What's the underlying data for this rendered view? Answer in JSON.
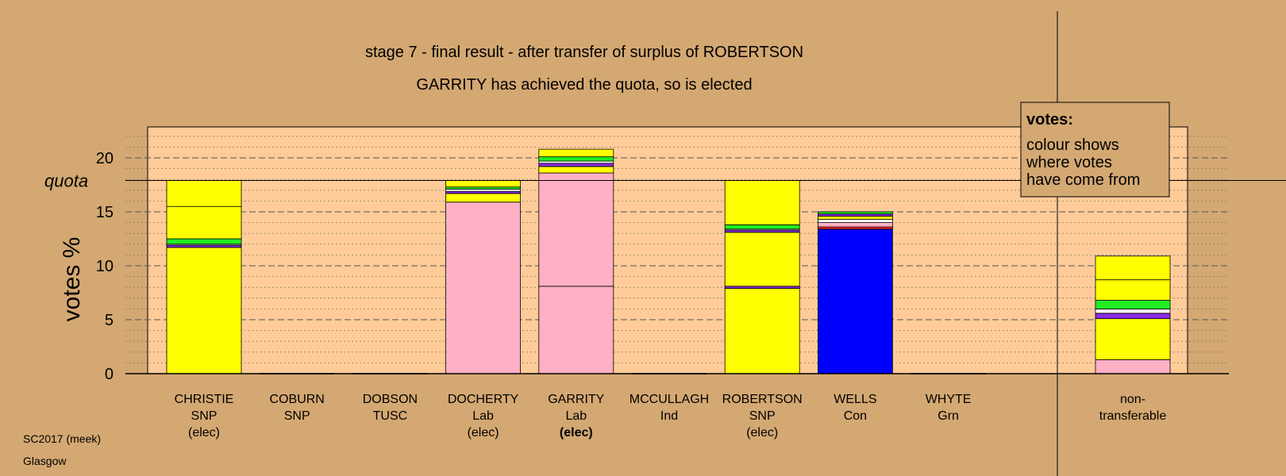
{
  "chart_data": {
    "type": "bar",
    "title": "stage 7 - final result - after transfer of surplus of ROBERTSON",
    "subtitle": "GARRITY has achieved the quota, so is elected",
    "ylabel": "votes %",
    "ylim": [
      0,
      23
    ],
    "yticks": [
      "0",
      "5",
      "10",
      "15",
      "20"
    ],
    "quota": 17.9,
    "quota_label": "quota",
    "grid": true,
    "legend_title": "votes:",
    "legend_lines": [
      "colour shows",
      "where votes",
      "have come from"
    ],
    "footer_line1": "SC2017 (meek)",
    "footer_line2": "Glasgow",
    "colors": {
      "background": "#d4a872",
      "plot_area": "#ffcc99",
      "snp": "#ffff00",
      "lab": "#ffb0c4",
      "con": "#0000ff",
      "grn": "#22ee22",
      "purple": "#8a2be2",
      "white": "#ffffff",
      "red": "#ff2222"
    },
    "candidates": [
      {
        "name": "CHRISTIE",
        "party": "SNP",
        "status": "(elec)",
        "status_bold": false,
        "total": 17.9,
        "segments": [
          {
            "value": 11.7,
            "color": "snp"
          },
          {
            "value": 0.2,
            "color": "purple"
          },
          {
            "value": 0.1,
            "color": "white"
          },
          {
            "value": 0.5,
            "color": "grn"
          },
          {
            "value": 3.0,
            "color": "snp"
          },
          {
            "value": 2.4,
            "color": "snp"
          }
        ]
      },
      {
        "name": "COBURN",
        "party": "SNP",
        "status": "",
        "status_bold": false,
        "total": 0,
        "segments": []
      },
      {
        "name": "DOBSON",
        "party": "TUSC",
        "status": "",
        "status_bold": false,
        "total": 0,
        "segments": []
      },
      {
        "name": "DOCHERTY",
        "party": "Lab",
        "status": "(elec)",
        "status_bold": false,
        "total": 17.9,
        "segments": [
          {
            "value": 15.9,
            "color": "lab"
          },
          {
            "value": 0.8,
            "color": "snp"
          },
          {
            "value": 0.2,
            "color": "purple"
          },
          {
            "value": 0.2,
            "color": "white"
          },
          {
            "value": 0.2,
            "color": "grn"
          },
          {
            "value": 0.6,
            "color": "snp"
          }
        ]
      },
      {
        "name": "GARRITY",
        "party": "Lab",
        "status": "(elec)",
        "status_bold": true,
        "total": 20.8,
        "segments": [
          {
            "value": 8.1,
            "color": "lab"
          },
          {
            "value": 10.5,
            "color": "lab"
          },
          {
            "value": 0.6,
            "color": "snp"
          },
          {
            "value": 0.3,
            "color": "purple"
          },
          {
            "value": 0.2,
            "color": "white"
          },
          {
            "value": 0.4,
            "color": "grn"
          },
          {
            "value": 0.7,
            "color": "snp"
          }
        ]
      },
      {
        "name": "MCCULLAGH",
        "party": "Ind",
        "status": "",
        "status_bold": false,
        "total": 0,
        "segments": []
      },
      {
        "name": "ROBERTSON",
        "party": "SNP",
        "status": "(elec)",
        "status_bold": false,
        "total": 17.9,
        "segments": [
          {
            "value": 7.9,
            "color": "snp"
          },
          {
            "value": 0.2,
            "color": "purple"
          },
          {
            "value": 5.0,
            "color": "snp"
          },
          {
            "value": 0.2,
            "color": "purple"
          },
          {
            "value": 0.1,
            "color": "white"
          },
          {
            "value": 0.4,
            "color": "grn"
          },
          {
            "value": 4.1,
            "color": "snp"
          }
        ]
      },
      {
        "name": "WELLS",
        "party": "Con",
        "status": "",
        "status_bold": false,
        "total": 15.0,
        "segments": [
          {
            "value": 13.4,
            "color": "con"
          },
          {
            "value": 0.2,
            "color": "red"
          },
          {
            "value": 0.4,
            "color": "lab"
          },
          {
            "value": 0.3,
            "color": "white"
          },
          {
            "value": 0.3,
            "color": "snp"
          },
          {
            "value": 0.2,
            "color": "purple"
          },
          {
            "value": 0.2,
            "color": "grn"
          }
        ]
      },
      {
        "name": "WHYTE",
        "party": "Grn",
        "status": "",
        "status_bold": false,
        "total": 0,
        "segments": []
      }
    ],
    "nontransferable": {
      "label_line1": "non-",
      "label_line2": "transferable",
      "total": 10.9,
      "segments": [
        {
          "value": 1.3,
          "color": "lab"
        },
        {
          "value": 3.8,
          "color": "snp"
        },
        {
          "value": 0.5,
          "color": "purple"
        },
        {
          "value": 0.4,
          "color": "white"
        },
        {
          "value": 0.8,
          "color": "grn"
        },
        {
          "value": 1.9,
          "color": "snp"
        },
        {
          "value": 2.2,
          "color": "snp"
        }
      ]
    }
  }
}
